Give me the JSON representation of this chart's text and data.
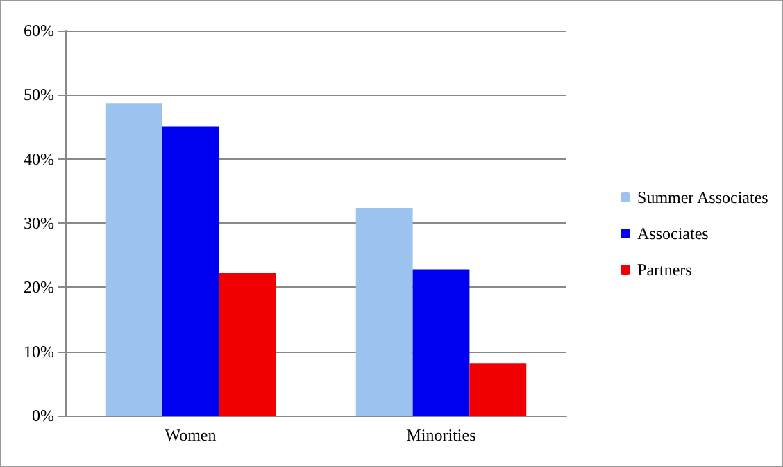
{
  "chart_data": {
    "type": "bar",
    "categories": [
      "Women",
      "Minorities"
    ],
    "series": [
      {
        "name": "Summer Associates",
        "color": "#9cc2f0",
        "values": [
          48.7,
          32.3
        ]
      },
      {
        "name": "Associates",
        "color": "#0000f0",
        "values": [
          45,
          22.8
        ]
      },
      {
        "name": "Partners",
        "color": "#f00000",
        "values": [
          22.2,
          8.1
        ]
      }
    ],
    "ylim": [
      0,
      60
    ],
    "yticks": [
      {
        "value": 0,
        "label": "0%"
      },
      {
        "value": 10,
        "label": "10%"
      },
      {
        "value": 20,
        "label": "20%"
      },
      {
        "value": 30,
        "label": "30%"
      },
      {
        "value": 40,
        "label": "40%"
      },
      {
        "value": 50,
        "label": "50%"
      },
      {
        "value": 60,
        "label": "60%"
      }
    ],
    "grid": "y",
    "legend": "right"
  }
}
